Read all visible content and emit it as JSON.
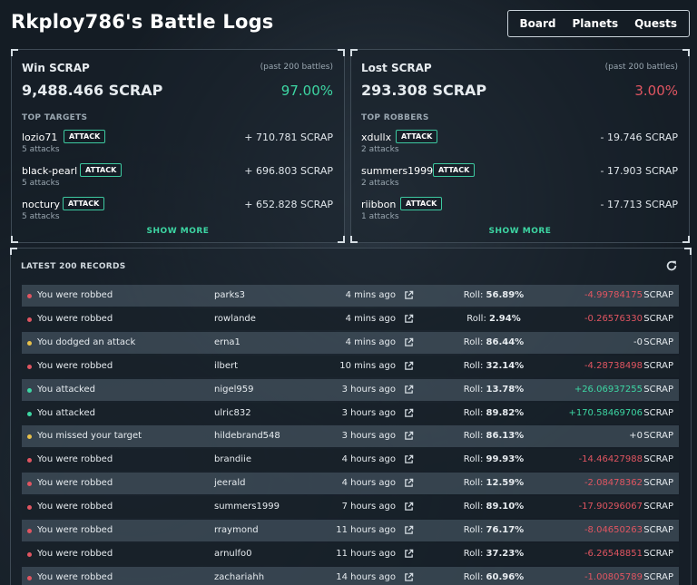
{
  "title": "Rkploy786's Battle Logs",
  "nav": [
    "Board",
    "Planets",
    "Quests"
  ],
  "win": {
    "title": "Win SCRAP",
    "subtitle": "(past 200 battles)",
    "amount": "9,488.466 SCRAP",
    "percent": "97.00%",
    "section": "TOP TARGETS",
    "show_more": "SHOW MORE",
    "items": [
      {
        "name": "lozio71",
        "badge": "ATTACK",
        "attacks": "5 attacks",
        "amount": "+ 710.781 SCRAP"
      },
      {
        "name": "black-pearl",
        "badge": "ATTACK",
        "attacks": "5 attacks",
        "amount": "+ 696.803 SCRAP"
      },
      {
        "name": "noctury",
        "badge": "ATTACK",
        "attacks": "5 attacks",
        "amount": "+ 652.828 SCRAP"
      }
    ]
  },
  "lost": {
    "title": "Lost SCRAP",
    "subtitle": "(past 200 battles)",
    "amount": "293.308 SCRAP",
    "percent": "3.00%",
    "section": "TOP ROBBERS",
    "show_more": "SHOW MORE",
    "items": [
      {
        "name": "xdullx",
        "badge": "ATTACK",
        "attacks": "2 attacks",
        "amount": "- 19.746 SCRAP"
      },
      {
        "name": "summers1999",
        "badge": "ATTACK",
        "attacks": "2 attacks",
        "amount": "- 17.903 SCRAP"
      },
      {
        "name": "riibbon",
        "badge": "ATTACK",
        "attacks": "1 attacks",
        "amount": "- 17.713 SCRAP"
      }
    ]
  },
  "records": {
    "title": "LATEST 200 RECORDS",
    "unit": "SCRAP",
    "roll_label": "Roll:",
    "rows": [
      {
        "event": "You were robbed",
        "status": "red",
        "user": "parks3",
        "time": "4 mins ago",
        "roll": "56.89%",
        "amount": "-4.99784175"
      },
      {
        "event": "You were robbed",
        "status": "red",
        "user": "rowlande",
        "time": "4 mins ago",
        "roll": "2.94%",
        "amount": "-0.26576330"
      },
      {
        "event": "You dodged an attack",
        "status": "yellow",
        "user": "erna1",
        "time": "4 mins ago",
        "roll": "86.44%",
        "amount": "-0"
      },
      {
        "event": "You were robbed",
        "status": "red",
        "user": "ilbert",
        "time": "10 mins ago",
        "roll": "32.14%",
        "amount": "-4.28738498"
      },
      {
        "event": "You attacked",
        "status": "green",
        "user": "nigel959",
        "time": "3 hours ago",
        "roll": "13.78%",
        "amount": "+26.06937255"
      },
      {
        "event": "You attacked",
        "status": "green",
        "user": "ulric832",
        "time": "3 hours ago",
        "roll": "89.82%",
        "amount": "+170.58469706"
      },
      {
        "event": "You missed your target",
        "status": "yellow",
        "user": "hildebrand548",
        "time": "3 hours ago",
        "roll": "86.13%",
        "amount": "+0"
      },
      {
        "event": "You were robbed",
        "status": "red",
        "user": "brandiie",
        "time": "4 hours ago",
        "roll": "99.93%",
        "amount": "-14.46427988"
      },
      {
        "event": "You were robbed",
        "status": "red",
        "user": "jeerald",
        "time": "4 hours ago",
        "roll": "12.59%",
        "amount": "-2.08478362"
      },
      {
        "event": "You were robbed",
        "status": "red",
        "user": "summers1999",
        "time": "7 hours ago",
        "roll": "89.10%",
        "amount": "-17.90296067"
      },
      {
        "event": "You were robbed",
        "status": "red",
        "user": "rraymond",
        "time": "11 hours ago",
        "roll": "76.17%",
        "amount": "-8.04650263"
      },
      {
        "event": "You were robbed",
        "status": "red",
        "user": "arnulfo0",
        "time": "11 hours ago",
        "roll": "37.23%",
        "amount": "-6.26548851"
      },
      {
        "event": "You were robbed",
        "status": "red",
        "user": "zachariahh",
        "time": "14 hours ago",
        "roll": "60.96%",
        "amount": "-1.00805789"
      }
    ]
  },
  "colors": {
    "accent": "#3dd6a3",
    "loss": "#e05561",
    "warn": "#e8c04a",
    "background": "#141c24"
  }
}
